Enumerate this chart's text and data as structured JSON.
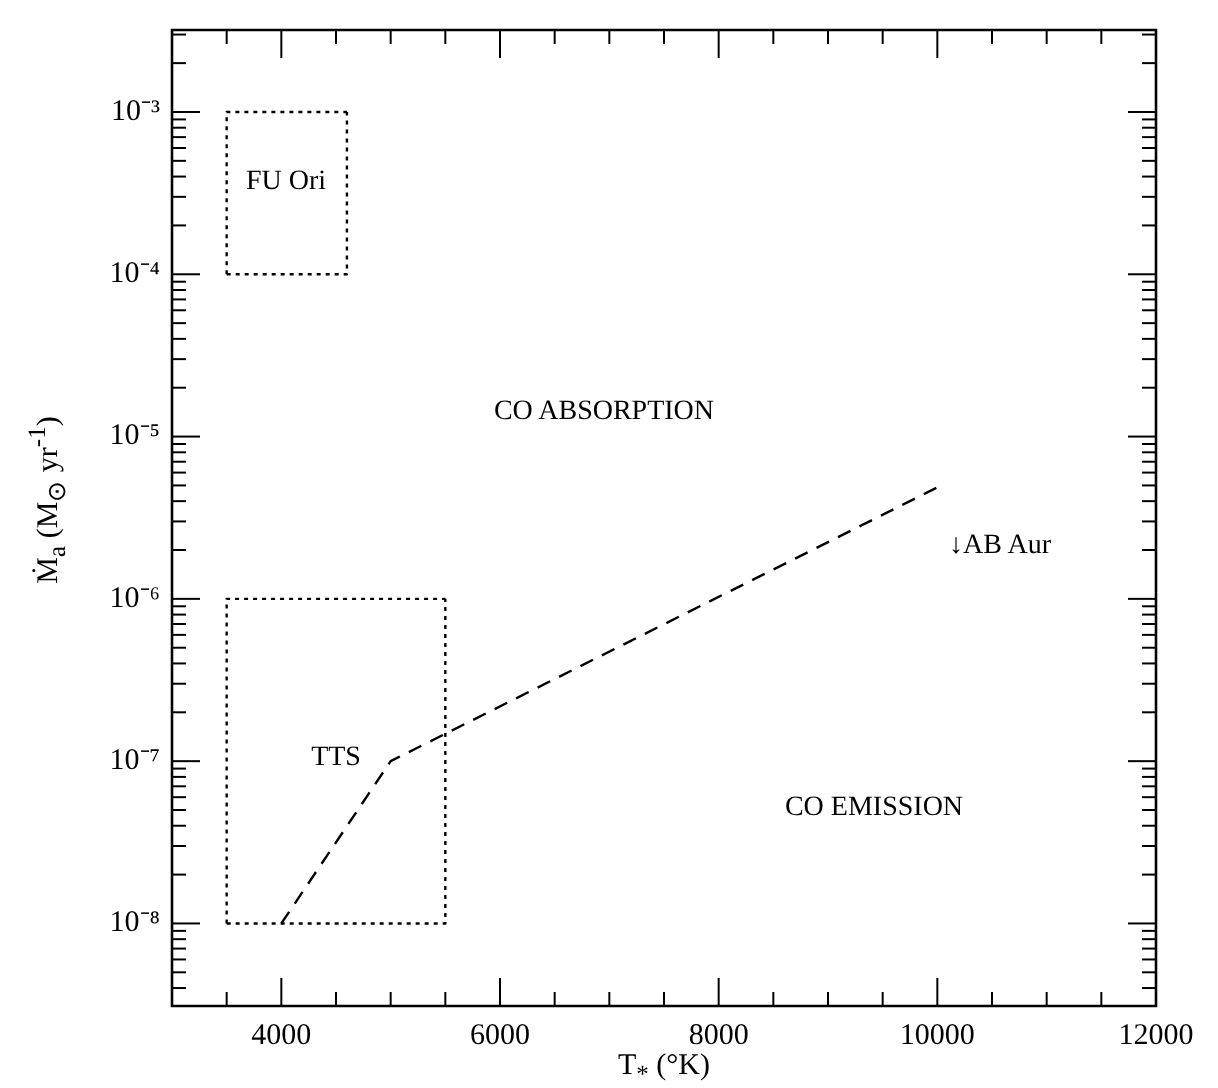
{
  "chart_data": {
    "type": "line",
    "xlabel": "T$_{*}$ (°K)",
    "ylabel": "Ṁ$_{a}$ (M$_{⊙}$ yr$^{-1}$)",
    "log": "y",
    "grid": false,
    "legend": false,
    "marker": "none",
    "xlim": [
      3000,
      12000
    ],
    "ylim": [
      3.1e-09,
      0.0032
    ],
    "xticks": [
      {
        "value": 3500,
        "label": null
      },
      4000,
      {
        "value": 4500,
        "label": null
      },
      {
        "value": 5000,
        "label": null
      },
      {
        "value": 5500,
        "label": null
      },
      6000,
      {
        "value": 6500,
        "label": null
      },
      {
        "value": 7000,
        "label": null
      },
      {
        "value": 7500,
        "label": null
      },
      8000,
      {
        "value": 8500,
        "label": null
      },
      {
        "value": 9000,
        "label": null
      },
      {
        "value": 9500,
        "label": null
      },
      10000,
      {
        "value": 10500,
        "label": null
      },
      {
        "value": 11000,
        "label": null
      },
      {
        "value": 11500,
        "label": null
      },
      12000
    ],
    "yticks": [
      {
        "value": 4e-09,
        "label": null
      },
      {
        "value": 5e-09,
        "label": null
      },
      {
        "value": 6e-09,
        "label": null
      },
      {
        "value": 7e-09,
        "label": null
      },
      {
        "value": 8e-09,
        "label": null
      },
      {
        "value": 9e-09,
        "label": null
      },
      {
        "value": 1e-08,
        "label": "10⁻⁸"
      },
      {
        "value": 2e-08,
        "label": null
      },
      {
        "value": 3e-08,
        "label": null
      },
      {
        "value": 4e-08,
        "label": null
      },
      {
        "value": 5e-08,
        "label": null
      },
      {
        "value": 6e-08,
        "label": null
      },
      {
        "value": 7e-08,
        "label": null
      },
      {
        "value": 8e-08,
        "label": null
      },
      {
        "value": 9e-08,
        "label": null
      },
      {
        "value": 1e-07,
        "label": "10⁻⁷"
      },
      {
        "value": 2e-07,
        "label": null
      },
      {
        "value": 3e-07,
        "label": null
      },
      {
        "value": 4e-07,
        "label": null
      },
      {
        "value": 5e-07,
        "label": null
      },
      {
        "value": 6e-07,
        "label": null
      },
      {
        "value": 7e-07,
        "label": null
      },
      {
        "value": 8e-07,
        "label": null
      },
      {
        "value": 9e-07,
        "label": null
      },
      {
        "value": 1e-06,
        "label": "10⁻⁶"
      },
      {
        "value": 2e-06,
        "label": null
      },
      {
        "value": 3e-06,
        "label": null
      },
      {
        "value": 4e-06,
        "label": null
      },
      {
        "value": 5e-06,
        "label": null
      },
      {
        "value": 6e-06,
        "label": null
      },
      {
        "value": 7e-06,
        "label": null
      },
      {
        "value": 8e-06,
        "label": null
      },
      {
        "value": 9e-06,
        "label": null
      },
      {
        "value": 1e-05,
        "label": "10⁻⁵"
      },
      {
        "value": 2e-05,
        "label": null
      },
      {
        "value": 3e-05,
        "label": null
      },
      {
        "value": 4e-05,
        "label": null
      },
      {
        "value": 5e-05,
        "label": null
      },
      {
        "value": 6e-05,
        "label": null
      },
      {
        "value": 7e-05,
        "label": null
      },
      {
        "value": 8e-05,
        "label": null
      },
      {
        "value": 9e-05,
        "label": null
      },
      {
        "value": 0.0001,
        "label": "10⁻⁴"
      },
      {
        "value": 0.0002,
        "label": null
      },
      {
        "value": 0.0003,
        "label": null
      },
      {
        "value": 0.0004,
        "label": null
      },
      {
        "value": 0.0005,
        "label": null
      },
      {
        "value": 0.0006,
        "label": null
      },
      {
        "value": 0.0007,
        "label": null
      },
      {
        "value": 0.0008,
        "label": null
      },
      {
        "value": 0.0009,
        "label": null
      },
      {
        "value": 0.001,
        "label": "10⁻³"
      },
      {
        "value": 0.002,
        "label": null
      },
      {
        "value": 0.003,
        "label": null
      }
    ],
    "series": [
      {
        "color": "#000000",
        "line_style": "dashed",
        "x": [
          4000,
          5000,
          10060
        ],
        "values": [
          1e-08,
          1e-07,
          5.1e-06
        ]
      },
      {
        "color": "#000000",
        "line_style": "dotted",
        "x": [
          3500,
          4600,
          4600
        ],
        "values": [
          0.0001,
          0.0001,
          0.001
        ]
      },
      {
        "color": "#000000",
        "line_style": "dotted",
        "x": [
          3500,
          3500,
          4600
        ],
        "values": [
          0.0001,
          0.001,
          0.001
        ]
      },
      {
        "color": "#000000",
        "line_style": "dotted",
        "x": [
          3500,
          5500,
          5500
        ],
        "values": [
          1e-08,
          1e-08,
          1e-06
        ]
      },
      {
        "color": "#000000",
        "line_style": "dotted",
        "x": [
          3500,
          3500,
          5500
        ],
        "values": [
          1e-08,
          1e-06,
          1e-06
        ]
      }
    ],
    "annotations": [
      "FU Ori",
      "CO ABSORPTION",
      "↓AB Aur",
      "TTS",
      "CO EMISSION"
    ]
  }
}
